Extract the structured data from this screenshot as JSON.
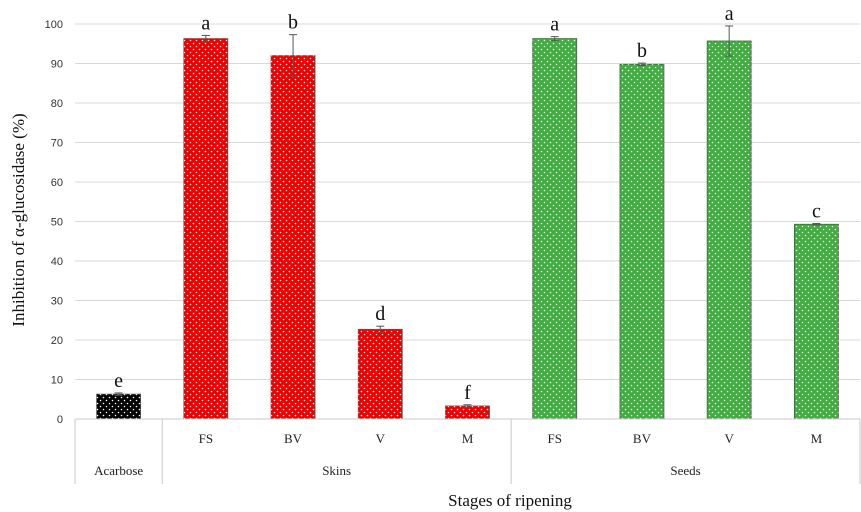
{
  "chart_data": {
    "type": "bar",
    "title": "",
    "ylabel": "Inhibition of α-glucosidase (%)",
    "xlabel": "Stages of ripening",
    "ylim": [
      0,
      100
    ],
    "yticks": [
      0,
      10,
      20,
      30,
      40,
      50,
      60,
      70,
      80,
      90,
      100
    ],
    "grid": true,
    "groups": [
      {
        "label": "Acarbose",
        "start": 0,
        "end": 0
      },
      {
        "label": "Skins",
        "start": 1,
        "end": 4
      },
      {
        "label": "Seeds",
        "start": 5,
        "end": 8
      }
    ],
    "bars": [
      {
        "category": "",
        "group": "Acarbose",
        "value": 6.3,
        "error": 0.3,
        "letter": "e",
        "color": "#000000"
      },
      {
        "category": "FS",
        "group": "Skins",
        "value": 96.3,
        "error": 0.8,
        "letter": "a",
        "color": "#ee0000"
      },
      {
        "category": "BV",
        "group": "Skins",
        "value": 92.0,
        "error": 5.3,
        "letter": "b",
        "color": "#ee0000"
      },
      {
        "category": "V",
        "group": "Skins",
        "value": 22.7,
        "error": 0.8,
        "letter": "d",
        "color": "#ee0000"
      },
      {
        "category": "M",
        "group": "Skins",
        "value": 3.3,
        "error": 0.3,
        "letter": "f",
        "color": "#ee0000"
      },
      {
        "category": "FS",
        "group": "Seeds",
        "value": 96.3,
        "error": 0.5,
        "letter": "a",
        "color": "#3fae3f"
      },
      {
        "category": "BV",
        "group": "Seeds",
        "value": 89.8,
        "error": 0.3,
        "letter": "b",
        "color": "#3fae3f"
      },
      {
        "category": "V",
        "group": "Seeds",
        "value": 95.7,
        "error": 3.8,
        "letter": "a",
        "color": "#3fae3f"
      },
      {
        "category": "M",
        "group": "Seeds",
        "value": 49.3,
        "error": 0.2,
        "letter": "c",
        "color": "#3fae3f"
      }
    ]
  }
}
